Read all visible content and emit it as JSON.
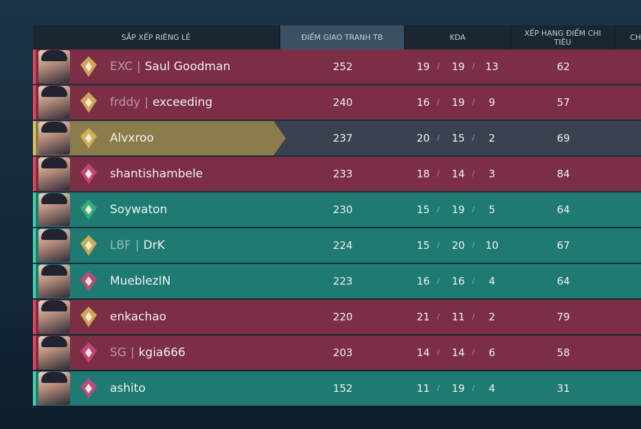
{
  "header": {
    "columns": [
      "SẮP XẾP RIÊNG LẺ",
      "ĐIỂM GIAO TRANH TB",
      "KDA",
      "XẾP HẠNG ĐIỂM CHI TIÊU",
      "CH"
    ]
  },
  "table": {
    "kda_separator": "/",
    "tag_separator": "|",
    "rows": [
      {
        "tag": "EXC",
        "name": "Saul Goodman",
        "acs": 252,
        "k": 19,
        "d": 19,
        "a": 13,
        "econ": 62,
        "color": "#7b2e44",
        "strip": "#e8475a",
        "rank_color": "#d9b25a"
      },
      {
        "tag": "frddy",
        "name": "exceeding",
        "acs": 240,
        "k": 16,
        "d": 19,
        "a": 9,
        "econ": 57,
        "color": "#7b2e44",
        "strip": "#e8475a",
        "rank_color": "#d9b25a"
      },
      {
        "name": "Alvxroo",
        "acs": 237,
        "k": 20,
        "d": 15,
        "a": 2,
        "econ": 69,
        "color": "#8c7c4c",
        "strip": "#e2c25a",
        "rank_color": "#d9b25a"
      },
      {
        "name": "shantishambele",
        "acs": 233,
        "k": 18,
        "d": 14,
        "a": 3,
        "econ": 84,
        "color": "#7b2e44",
        "strip": "#e8475a",
        "rank_color": "#c9487e"
      },
      {
        "name": "Soywaton",
        "acs": 230,
        "k": 15,
        "d": 19,
        "a": 5,
        "econ": 64,
        "color": "#1f7a72",
        "strip": "#3fd6a8",
        "rank_color": "#37b07a"
      },
      {
        "tag": "LBF",
        "name": "DrK",
        "acs": 224,
        "k": 15,
        "d": 20,
        "a": 10,
        "econ": 67,
        "color": "#1f7a72",
        "strip": "#3fd6a8",
        "rank_color": "#d9b25a"
      },
      {
        "name": "MueblezIN",
        "acs": 223,
        "k": 16,
        "d": 16,
        "a": 4,
        "econ": 64,
        "color": "#1f7a72",
        "strip": "#3fd6a8",
        "rank_color": "#c9487e"
      },
      {
        "name": "enkachao",
        "acs": 220,
        "k": 21,
        "d": 11,
        "a": 2,
        "econ": 79,
        "color": "#7b2e44",
        "strip": "#e8475a",
        "rank_color": "#d9b25a"
      },
      {
        "tag": "SG",
        "name": "kgia666",
        "acs": 203,
        "k": 14,
        "d": 14,
        "a": 6,
        "econ": 58,
        "color": "#7b2e44",
        "strip": "#e8475a",
        "rank_color": "#c9487e"
      },
      {
        "name": "ashito",
        "acs": 152,
        "k": 11,
        "d": 19,
        "a": 4,
        "econ": 31,
        "color": "#1f7a72",
        "strip": "#3fd6a8",
        "rank_color": "#c9487e"
      }
    ]
  }
}
